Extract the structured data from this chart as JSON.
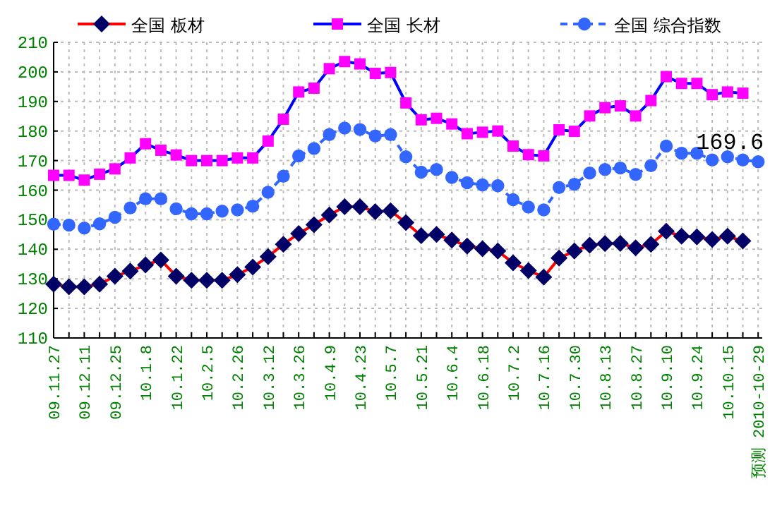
{
  "chart_data": {
    "type": "line",
    "categories": [
      "09.11.27",
      null,
      "09.12.11",
      null,
      "09.12.25",
      null,
      "10.1.8",
      null,
      "10.1.22",
      null,
      "10.2.5",
      null,
      "10.2.26",
      null,
      "10.3.12",
      null,
      "10.3.26",
      null,
      "10.4.9",
      null,
      "10.4.23",
      null,
      "10.5.7",
      null,
      "10.5.21",
      null,
      "10.6.4",
      null,
      "10.6.18",
      null,
      "10.7.2",
      null,
      "10.7.16",
      null,
      "10.7.30",
      null,
      "10.8.13",
      null,
      "10.8.27",
      null,
      "10.9.10",
      null,
      "10.9.24",
      null,
      "10.10.15",
      null,
      "预测 2010-10-29"
    ],
    "series": [
      {
        "name": "全国 板材",
        "color": "#000066",
        "marker": "diamond",
        "values": [
          128.2,
          127.3,
          127.3,
          128.2,
          130.9,
          132.6,
          134.7,
          136.4,
          130.9,
          129.5,
          129.5,
          129.5,
          131.4,
          134.0,
          137.5,
          141.7,
          145.3,
          148.3,
          151.6,
          154.4,
          154.4,
          152.7,
          153.0,
          149.0,
          144.6,
          145.0,
          143.1,
          141.1,
          140.2,
          139.4,
          135.4,
          132.8,
          130.6,
          137.0,
          139.4,
          141.4,
          141.9,
          142.0,
          140.5,
          141.7,
          146.1,
          144.4,
          144.2,
          143.3,
          144.4,
          142.8,
          null
        ]
      },
      {
        "name": "全国 长材",
        "color": "#ff00ff",
        "marker": "square",
        "values": [
          165.0,
          165.0,
          163.4,
          165.4,
          167.2,
          170.9,
          175.7,
          173.5,
          171.9,
          170.0,
          170.0,
          170.0,
          170.9,
          170.9,
          176.6,
          184.0,
          193.2,
          194.5,
          201.1,
          203.5,
          202.7,
          199.5,
          199.8,
          189.5,
          183.8,
          184.3,
          182.4,
          179.1,
          179.6,
          180.0,
          174.9,
          172.0,
          171.6,
          180.4,
          179.9,
          185.1,
          187.9,
          188.5,
          185.1,
          190.3,
          198.4,
          196.1,
          196.1,
          192.3,
          193.2,
          192.8,
          null
        ]
      },
      {
        "name": "全国 综合指数",
        "color": "#3366ff",
        "marker": "circle",
        "line_style": "dashed",
        "values": [
          148.5,
          148.2,
          147.2,
          148.6,
          150.8,
          154.0,
          157.1,
          157.1,
          153.7,
          152.0,
          152.0,
          152.9,
          153.3,
          154.6,
          159.3,
          164.7,
          171.6,
          174.1,
          178.8,
          181.0,
          180.5,
          178.3,
          178.8,
          171.3,
          166.1,
          167.0,
          164.3,
          162.5,
          161.8,
          161.5,
          156.8,
          154.3,
          153.3,
          160.9,
          162.0,
          165.8,
          167.0,
          167.5,
          165.3,
          168.3,
          174.9,
          172.5,
          172.5,
          170.2,
          171.3,
          170.2,
          169.6
        ]
      }
    ],
    "ylim": [
      110,
      210
    ],
    "yticks": [
      110,
      120,
      130,
      140,
      150,
      160,
      170,
      180,
      190,
      200,
      210
    ],
    "grid": true,
    "legend": "top",
    "annotations": [
      {
        "text": "169.6",
        "x": "预测 2010-10-29",
        "y": 169.6
      }
    ]
  }
}
